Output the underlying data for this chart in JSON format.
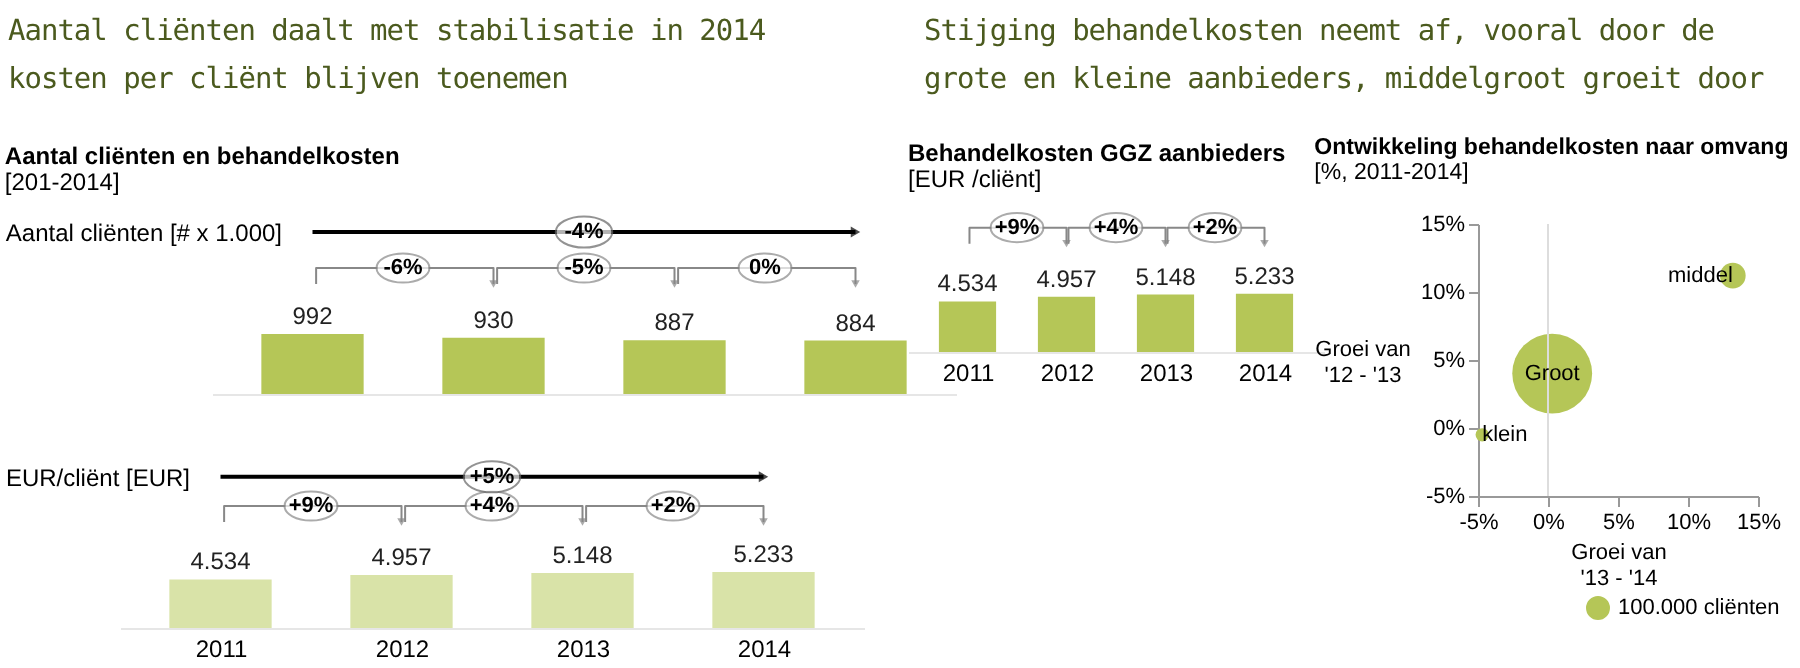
{
  "chart_data": [
    {
      "type": "bar",
      "title": "Aantal cliënten daalt met stabilisatie in 2014 kosten per cliënt blijven toenemen",
      "subtitle": "Aantal cliënten en behandelkosten",
      "ylabel": "Aantal cliënten [# x 1.000]",
      "categories": [
        "2011",
        "2012",
        "2013",
        "2014"
      ],
      "tick_labels": false,
      "color": "#b5c657",
      "values": [
        992,
        930,
        887,
        884
      ],
      "data_labels": true,
      "annotations": [
        "[201-2014]",
        "-4%",
        "-6%",
        "-5%",
        "0%"
      ]
    },
    {
      "type": "bar",
      "ylabel": "EUR/cliënt [EUR]",
      "categories": [
        "2011",
        "2012",
        "2013",
        "2014"
      ],
      "color": "#d9e3a8",
      "values": [
        4534,
        4957,
        5148,
        5233
      ],
      "value_labels": [
        "4.534",
        "4.957",
        "5.148",
        "5.233"
      ],
      "annotations": [
        "+5%",
        "+9%",
        "+4%",
        "+2%"
      ]
    },
    {
      "type": "bar",
      "title": "Stijging behandelkosten neemt af, vooral door de grote en kleine aanbieders, middelgroot groeit door",
      "subtitle": "Behandelkosten GGZ aanbieders",
      "categories": [
        "2011",
        "2012",
        "2013",
        "2014"
      ],
      "color": "#b5c657",
      "values": [
        4534,
        4957,
        5148,
        5233
      ],
      "value_labels": [
        "4.534",
        "4.957",
        "5.148",
        "5.233"
      ],
      "annotations": [
        "[EUR /cliënt]",
        "+9%",
        "+4%",
        "+2%"
      ]
    },
    {
      "type": "bubble",
      "title": "Ontwikkeling behandelkosten naar omvang",
      "subtitle": "[%, 2011-2014]",
      "xlabel": "Groei van '13 - '14",
      "ylabel": "Groei van '12 - '13",
      "xlim": [
        -5,
        15
      ],
      "ylim": [
        -5,
        15
      ],
      "xticks": [
        {
          "value": -5,
          "label": "-5%"
        },
        {
          "value": 0,
          "label": "0%"
        },
        {
          "value": 5,
          "label": "5%"
        },
        {
          "value": 10,
          "label": "10%"
        },
        {
          "value": 15,
          "label": "15%"
        }
      ],
      "yticks": [
        {
          "value": -5,
          "label": "-5%"
        },
        {
          "value": 0,
          "label": "0%"
        },
        {
          "value": 5,
          "label": "5%"
        },
        {
          "value": 10,
          "label": "10%"
        },
        {
          "value": 15,
          "label": "15%"
        }
      ],
      "ref_lines": [
        {
          "axis": "x",
          "value": 0,
          "color": "#dddddd"
        }
      ],
      "size_legend": [
        {
          "value": 100000,
          "label": "100.000 cliënten"
        }
      ],
      "series": [
        {
          "name": "klein",
          "color": "#b5c657",
          "x": [
            -4.7
          ],
          "values": [
            -0.5
          ],
          "sizes": [
            40000
          ]
        },
        {
          "name": "Groot",
          "color": "#b5c657",
          "x": [
            0.3
          ],
          "values": [
            4
          ],
          "sizes": [
            1450000
          ]
        },
        {
          "name": "middel",
          "color": "#b5c657",
          "x": [
            13.2
          ],
          "values": [
            11.2
          ],
          "sizes": [
            150000
          ]
        }
      ]
    }
  ]
}
